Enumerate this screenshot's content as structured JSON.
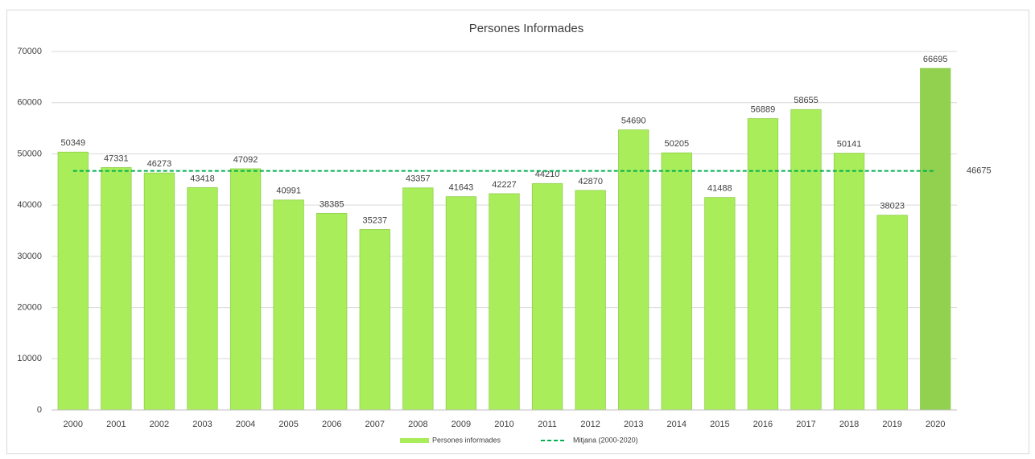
{
  "chart_data": {
    "type": "bar",
    "title": "Persones Informades",
    "categories": [
      "2000",
      "2001",
      "2002",
      "2003",
      "2004",
      "2005",
      "2006",
      "2007",
      "2008",
      "2009",
      "2010",
      "2011",
      "2012",
      "2013",
      "2014",
      "2015",
      "2016",
      "2017",
      "2018",
      "2019",
      "2020"
    ],
    "series": [
      {
        "name": "Persones informades",
        "color": "#a9ee5a",
        "bar_colors": [
          "#a9ee5a",
          "#a9ee5a",
          "#a9ee5a",
          "#a9ee5a",
          "#a9ee5a",
          "#a9ee5a",
          "#a9ee5a",
          "#a9ee5a",
          "#a9ee5a",
          "#a9ee5a",
          "#a9ee5a",
          "#a9ee5a",
          "#a9ee5a",
          "#a9ee5a",
          "#a9ee5a",
          "#a9ee5a",
          "#a9ee5a",
          "#a9ee5a",
          "#a9ee5a",
          "#a9ee5a",
          "#92d050"
        ],
        "values": [
          50349,
          47331,
          46273,
          43418,
          47092,
          40991,
          38385,
          35237,
          43357,
          41643,
          42227,
          44210,
          42870,
          54690,
          50205,
          41488,
          56889,
          58655,
          50141,
          38023,
          66695
        ]
      },
      {
        "name": "Mitjana (2000-2020)",
        "color": "#00b050",
        "type": "reference_line",
        "style": "dashed",
        "value": 46675
      }
    ],
    "ylim": [
      0,
      70000
    ],
    "yticks": [
      0,
      10000,
      20000,
      30000,
      40000,
      50000,
      60000,
      70000
    ],
    "grid": true,
    "legend": "bottom"
  }
}
